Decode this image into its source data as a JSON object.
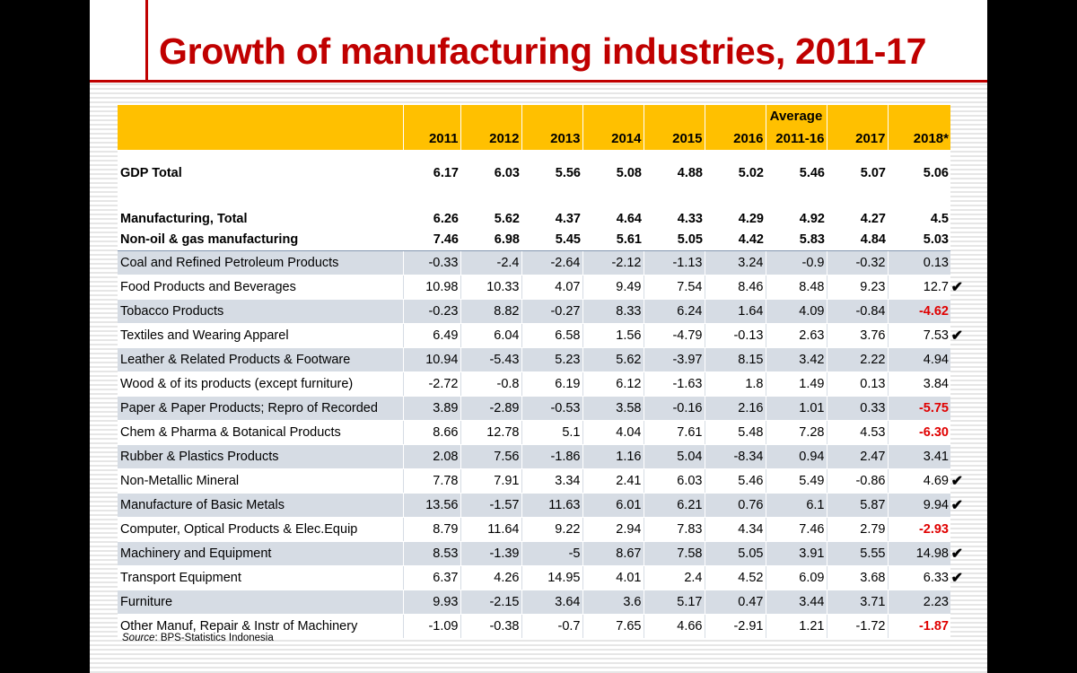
{
  "title": "Growth of manufacturing industries, 2011-17",
  "header": {
    "avg_top": "Average",
    "years": [
      "2011",
      "2012",
      "2013",
      "2014",
      "2015",
      "2016",
      "2011-16",
      "2017",
      "2018*"
    ]
  },
  "summary_rows": [
    {
      "name": "GDP Total",
      "values": [
        "6.17",
        "6.03",
        "5.56",
        "5.08",
        "4.88",
        "5.02",
        "5.46",
        "5.07",
        "5.06"
      ]
    },
    {
      "name": "Manufacturing, Total",
      "values": [
        "6.26",
        "5.62",
        "4.37",
        "4.64",
        "4.33",
        "4.29",
        "4.92",
        "4.27",
        "4.5"
      ]
    },
    {
      "name": "Non-oil & gas manufacturing",
      "values": [
        "7.46",
        "6.98",
        "5.45",
        "5.61",
        "5.05",
        "4.42",
        "5.83",
        "4.84",
        "5.03"
      ]
    }
  ],
  "sector_rows": [
    {
      "name": "Coal and Refined Petroleum Products",
      "values": [
        "-0.33",
        "-2.4",
        "-2.64",
        "-2.12",
        "-1.13",
        "3.24",
        "-0.9",
        "-0.32",
        "0.13"
      ],
      "red": false,
      "check": false
    },
    {
      "name": "Food Products and Beverages",
      "values": [
        "10.98",
        "10.33",
        "4.07",
        "9.49",
        "7.54",
        "8.46",
        "8.48",
        "9.23",
        "12.7"
      ],
      "red": false,
      "check": true
    },
    {
      "name": "Tobacco Products",
      "values": [
        "-0.23",
        "8.82",
        "-0.27",
        "8.33",
        "6.24",
        "1.64",
        "4.09",
        "-0.84",
        "-4.62"
      ],
      "red": true,
      "check": false
    },
    {
      "name": "Textiles and Wearing Apparel",
      "values": [
        "6.49",
        "6.04",
        "6.58",
        "1.56",
        "-4.79",
        "-0.13",
        "2.63",
        "3.76",
        "7.53"
      ],
      "red": false,
      "check": true
    },
    {
      "name": "Leather & Related Products & Footware",
      "values": [
        "10.94",
        "-5.43",
        "5.23",
        "5.62",
        "-3.97",
        "8.15",
        "3.42",
        "2.22",
        "4.94"
      ],
      "red": false,
      "check": false
    },
    {
      "name": "Wood & of its products (except furniture)",
      "values": [
        "-2.72",
        "-0.8",
        "6.19",
        "6.12",
        "-1.63",
        "1.8",
        "1.49",
        "0.13",
        "3.84"
      ],
      "red": false,
      "check": false
    },
    {
      "name": "Paper & Paper Products; Repro of Recorded",
      "values": [
        "3.89",
        "-2.89",
        "-0.53",
        "3.58",
        "-0.16",
        "2.16",
        "1.01",
        "0.33",
        "-5.75"
      ],
      "red": true,
      "check": false
    },
    {
      "name": "Chem & Pharma & Botanical Products",
      "values": [
        "8.66",
        "12.78",
        "5.1",
        "4.04",
        "7.61",
        "5.48",
        "7.28",
        "4.53",
        "-6.30"
      ],
      "red": true,
      "check": false
    },
    {
      "name": "Rubber & Plastics Products",
      "values": [
        "2.08",
        "7.56",
        "-1.86",
        "1.16",
        "5.04",
        "-8.34",
        "0.94",
        "2.47",
        "3.41"
      ],
      "red": false,
      "check": false
    },
    {
      "name": "Non-Metallic Mineral",
      "values": [
        "7.78",
        "7.91",
        "3.34",
        "2.41",
        "6.03",
        "5.46",
        "5.49",
        "-0.86",
        "4.69"
      ],
      "red": false,
      "check": true
    },
    {
      "name": "Manufacture of Basic Metals",
      "values": [
        "13.56",
        "-1.57",
        "11.63",
        "6.01",
        "6.21",
        "0.76",
        "6.1",
        "5.87",
        "9.94"
      ],
      "red": false,
      "check": true
    },
    {
      "name": "Computer, Optical Products & Elec.Equip",
      "values": [
        "8.79",
        "11.64",
        "9.22",
        "2.94",
        "7.83",
        "4.34",
        "7.46",
        "2.79",
        "-2.93"
      ],
      "red": true,
      "check": false
    },
    {
      "name": "Machinery and Equipment",
      "values": [
        "8.53",
        "-1.39",
        "-5",
        "8.67",
        "7.58",
        "5.05",
        "3.91",
        "5.55",
        "14.98"
      ],
      "red": false,
      "check": true
    },
    {
      "name": "Transport Equipment",
      "values": [
        "6.37",
        "4.26",
        "14.95",
        "4.01",
        "2.4",
        "4.52",
        "6.09",
        "3.68",
        "6.33"
      ],
      "red": false,
      "check": true
    },
    {
      "name": "Furniture",
      "values": [
        "9.93",
        "-2.15",
        "3.64",
        "3.6",
        "5.17",
        "0.47",
        "3.44",
        "3.71",
        "2.23"
      ],
      "red": false,
      "check": false
    },
    {
      "name": "Other Manuf, Repair & Instr of Machinery",
      "values": [
        "-1.09",
        "-0.38",
        "-0.7",
        "7.65",
        "4.66",
        "-2.91",
        "1.21",
        "-1.72",
        "-1.87"
      ],
      "red": true,
      "check": false
    }
  ],
  "check_mark": "✔",
  "source": {
    "label": "Source",
    "text": ": BPS-Statistics Indonesia"
  },
  "colors": {
    "title_red": "#c00000",
    "header_fill": "#ffc000",
    "band_fill": "#d6dce4",
    "negative_red": "#e00000"
  }
}
